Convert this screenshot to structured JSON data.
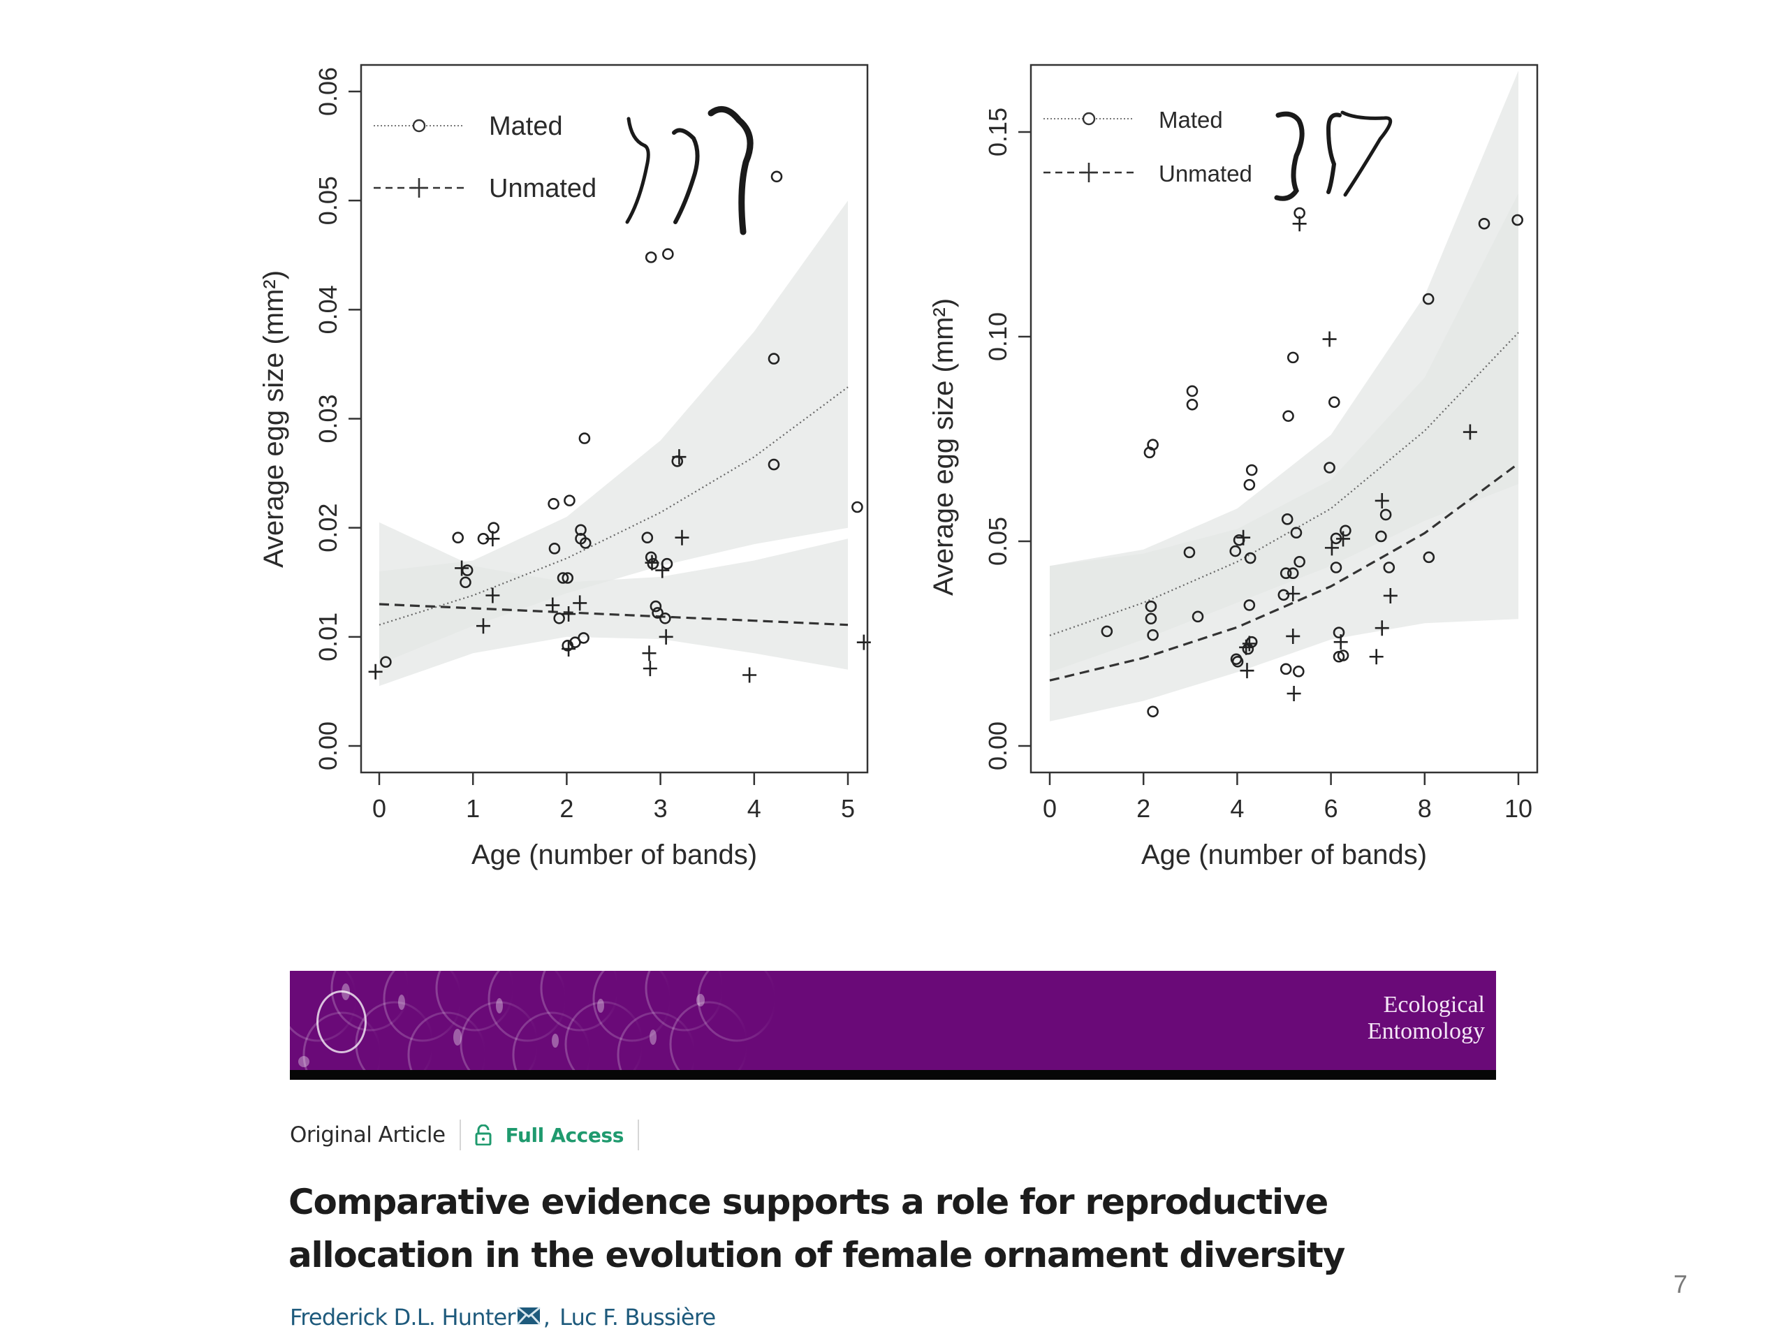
{
  "chart_data": [
    {
      "type": "scatter",
      "title": "",
      "xlabel": "Age (number of bands)",
      "ylabel": "Average egg size (mm²)",
      "xlim": [
        -0.2,
        5.2
      ],
      "ylim": [
        -0.0025,
        0.0625
      ],
      "xticks": [
        0,
        1,
        2,
        3,
        4,
        5
      ],
      "xtick_labels": [
        "0",
        "1",
        "2",
        "3",
        "4",
        "5"
      ],
      "yticks": [
        0.0,
        0.01,
        0.02,
        0.03,
        0.04,
        0.05,
        0.06
      ],
      "ytick_labels": [
        "0.00",
        "0.01",
        "0.02",
        "0.03",
        "0.04",
        "0.05",
        "0.06"
      ],
      "grid": false,
      "legend": {
        "position": "top-left",
        "entries": [
          {
            "label": "Mated",
            "marker": "circle",
            "line": "dotted"
          },
          {
            "label": "Unmated",
            "marker": "plus",
            "line": "dashed"
          }
        ]
      },
      "series": [
        {
          "name": "Mated",
          "marker": "circle",
          "points": [
            [
              0.07,
              0.0077
            ],
            [
              0.84,
              0.0191
            ],
            [
              0.94,
              0.0161
            ],
            [
              0.92,
              0.015
            ],
            [
              1.11,
              0.019
            ],
            [
              1.22,
              0.02
            ],
            [
              1.86,
              0.0222
            ],
            [
              1.87,
              0.0181
            ],
            [
              1.92,
              0.0117
            ],
            [
              1.96,
              0.0154
            ],
            [
              2.01,
              0.0154
            ],
            [
              2.03,
              0.0225
            ],
            [
              2.01,
              0.0092
            ],
            [
              2.09,
              0.0095
            ],
            [
              2.18,
              0.0099
            ],
            [
              2.15,
              0.0198
            ],
            [
              2.15,
              0.019
            ],
            [
              2.2,
              0.0186
            ],
            [
              2.19,
              0.0282
            ],
            [
              2.86,
              0.0191
            ],
            [
              2.9,
              0.0448
            ],
            [
              2.9,
              0.0173
            ],
            [
              2.92,
              0.0167
            ],
            [
              2.95,
              0.0128
            ],
            [
              2.97,
              0.0122
            ],
            [
              3.05,
              0.0117
            ],
            [
              3.07,
              0.0167
            ],
            [
              3.08,
              0.0451
            ],
            [
              3.18,
              0.0261
            ],
            [
              4.21,
              0.0355
            ],
            [
              4.21,
              0.0258
            ],
            [
              4.24,
              0.0522
            ],
            [
              5.1,
              0.0219
            ]
          ],
          "fit": {
            "style": "dotted",
            "x": [
              0,
              1,
              2,
              3,
              4,
              5
            ],
            "y": [
              0.0111,
              0.0138,
              0.0172,
              0.0214,
              0.0265,
              0.0329
            ]
          },
          "ci": {
            "x": [
              0,
              1,
              2,
              3,
              4,
              5
            ],
            "lower": [
              0.0075,
              0.011,
              0.014,
              0.0165,
              0.0185,
              0.02
            ],
            "upper": [
              0.016,
              0.017,
              0.021,
              0.028,
              0.038,
              0.05
            ]
          }
        },
        {
          "name": "Unmated",
          "marker": "plus",
          "points": [
            [
              -0.04,
              0.0068
            ],
            [
              0.88,
              0.0163
            ],
            [
              1.11,
              0.011
            ],
            [
              1.21,
              0.0138
            ],
            [
              1.21,
              0.019
            ],
            [
              1.85,
              0.0129
            ],
            [
              2.02,
              0.0089
            ],
            [
              2.02,
              0.0121
            ],
            [
              2.14,
              0.0131
            ],
            [
              2.88,
              0.0085
            ],
            [
              2.89,
              0.0071
            ],
            [
              2.91,
              0.0168
            ],
            [
              3.02,
              0.0161
            ],
            [
              3.06,
              0.01
            ],
            [
              3.23,
              0.0191
            ],
            [
              3.2,
              0.0265
            ],
            [
              3.95,
              0.0065
            ],
            [
              5.17,
              0.0095
            ]
          ],
          "fit": {
            "style": "dashed",
            "x": [
              0,
              5
            ],
            "y": [
              0.013,
              0.0111
            ]
          },
          "ci": {
            "x": [
              0,
              1,
              2,
              3,
              4,
              5
            ],
            "lower": [
              0.0055,
              0.0085,
              0.01,
              0.0098,
              0.0085,
              0.007
            ],
            "upper": [
              0.0205,
              0.0165,
              0.015,
              0.0155,
              0.017,
              0.019
            ]
          }
        }
      ]
    },
    {
      "type": "scatter",
      "title": "",
      "xlabel": "Age (number of bands)",
      "ylabel": "Average egg size (mm²)",
      "xlim": [
        -0.4,
        10.4
      ],
      "ylim": [
        -0.0065,
        0.166
      ],
      "xticks": [
        0,
        2,
        4,
        6,
        8,
        10
      ],
      "xtick_labels": [
        "0",
        "2",
        "4",
        "6",
        "8",
        "10"
      ],
      "yticks": [
        0.0,
        0.05,
        0.1,
        0.15
      ],
      "ytick_labels": [
        "0.00",
        "0.05",
        "0.10",
        "0.15"
      ],
      "grid": false,
      "legend": {
        "position": "top-left",
        "entries": [
          {
            "label": "Mated",
            "marker": "circle",
            "line": "dotted"
          },
          {
            "label": "Unmated",
            "marker": "plus",
            "line": "dashed"
          }
        ]
      },
      "series": [
        {
          "name": "Mated",
          "marker": "circle",
          "points": [
            [
              1.22,
              0.028
            ],
            [
              2.13,
              0.0717
            ],
            [
              2.2,
              0.0736
            ],
            [
              2.16,
              0.0341
            ],
            [
              2.16,
              0.0311
            ],
            [
              2.2,
              0.0271
            ],
            [
              2.2,
              0.0084
            ],
            [
              2.98,
              0.0473
            ],
            [
              3.04,
              0.0867
            ],
            [
              3.04,
              0.0834
            ],
            [
              3.16,
              0.0316
            ],
            [
              3.96,
              0.0476
            ],
            [
              4.01,
              0.0206
            ],
            [
              3.98,
              0.0212
            ],
            [
              4.04,
              0.0503
            ],
            [
              4.23,
              0.0237
            ],
            [
              4.26,
              0.0638
            ],
            [
              4.28,
              0.0459
            ],
            [
              4.31,
              0.0674
            ],
            [
              4.26,
              0.0344
            ],
            [
              4.31,
              0.0254
            ],
            [
              4.99,
              0.0369
            ],
            [
              5.04,
              0.0422
            ],
            [
              5.04,
              0.0188
            ],
            [
              5.07,
              0.0554
            ],
            [
              5.19,
              0.0422
            ],
            [
              5.19,
              0.0949
            ],
            [
              5.26,
              0.0521
            ],
            [
              5.31,
              0.0182
            ],
            [
              5.33,
              0.045
            ],
            [
              5.09,
              0.0806
            ],
            [
              5.33,
              0.1302
            ],
            [
              5.97,
              0.068
            ],
            [
              6.07,
              0.084
            ],
            [
              6.11,
              0.0436
            ],
            [
              6.11,
              0.0507
            ],
            [
              6.17,
              0.0277
            ],
            [
              6.17,
              0.0218
            ],
            [
              6.26,
              0.0221
            ],
            [
              6.31,
              0.0526
            ],
            [
              7.07,
              0.0512
            ],
            [
              7.17,
              0.0565
            ],
            [
              7.24,
              0.0436
            ],
            [
              8.09,
              0.0461
            ],
            [
              8.08,
              0.1092
            ],
            [
              9.27,
              0.1276
            ],
            [
              9.98,
              0.1285
            ]
          ],
          "fit": {
            "style": "dotted",
            "x": [
              0,
              2,
              4,
              6,
              8,
              10
            ],
            "y": [
              0.027,
              0.035,
              0.045,
              0.058,
              0.077,
              0.101
            ]
          },
          "ci": {
            "x": [
              0,
              2,
              4,
              6,
              8,
              10
            ],
            "lower": [
              0.018,
              0.026,
              0.035,
              0.044,
              0.055,
              0.064
            ],
            "upper": [
              0.044,
              0.048,
              0.058,
              0.076,
              0.11,
              0.165
            ]
          }
        },
        {
          "name": "Unmated",
          "marker": "plus",
          "points": [
            [
              4.13,
              0.0509
            ],
            [
              4.19,
              0.0241
            ],
            [
              4.21,
              0.0184
            ],
            [
              4.26,
              0.025
            ],
            [
              5.21,
              0.0128
            ],
            [
              5.19,
              0.0268
            ],
            [
              5.19,
              0.0372
            ],
            [
              5.33,
              0.1276
            ],
            [
              5.97,
              0.0994
            ],
            [
              6.02,
              0.0484
            ],
            [
              6.21,
              0.0254
            ],
            [
              6.26,
              0.0506
            ],
            [
              7.09,
              0.0599
            ],
            [
              7.09,
              0.0288
            ],
            [
              6.97,
              0.0218
            ],
            [
              7.27,
              0.0367
            ],
            [
              8.97,
              0.0767
            ]
          ],
          "fit": {
            "style": "dashed",
            "x": [
              0,
              2,
              4,
              6,
              8,
              10
            ],
            "y": [
              0.016,
              0.0215,
              0.029,
              0.039,
              0.052,
              0.069
            ]
          },
          "ci": {
            "x": [
              0,
              2,
              4,
              6,
              8,
              10
            ],
            "lower": [
              0.006,
              0.011,
              0.018,
              0.026,
              0.03,
              0.031
            ],
            "upper": [
              0.044,
              0.047,
              0.053,
              0.065,
              0.09,
              0.135
            ]
          }
        }
      ]
    }
  ],
  "banner": {
    "journal_line1": "Ecological",
    "journal_line2": "Entomology",
    "brand_color": "#6a0a78"
  },
  "article": {
    "type": "Original Article",
    "access_icon": "lock-open-icon",
    "access_label": "Full Access",
    "access_color": "#1f9a6e",
    "title": "Comparative evidence supports a role for reproductive allocation in the evolution of female ornament diversity",
    "authors": [
      {
        "name": "Frederick D.L. Hunter",
        "contact_icon": "mail-icon"
      },
      {
        "name": "Luc F. Bussière"
      }
    ],
    "author_separator": ","
  },
  "page_number": "7"
}
